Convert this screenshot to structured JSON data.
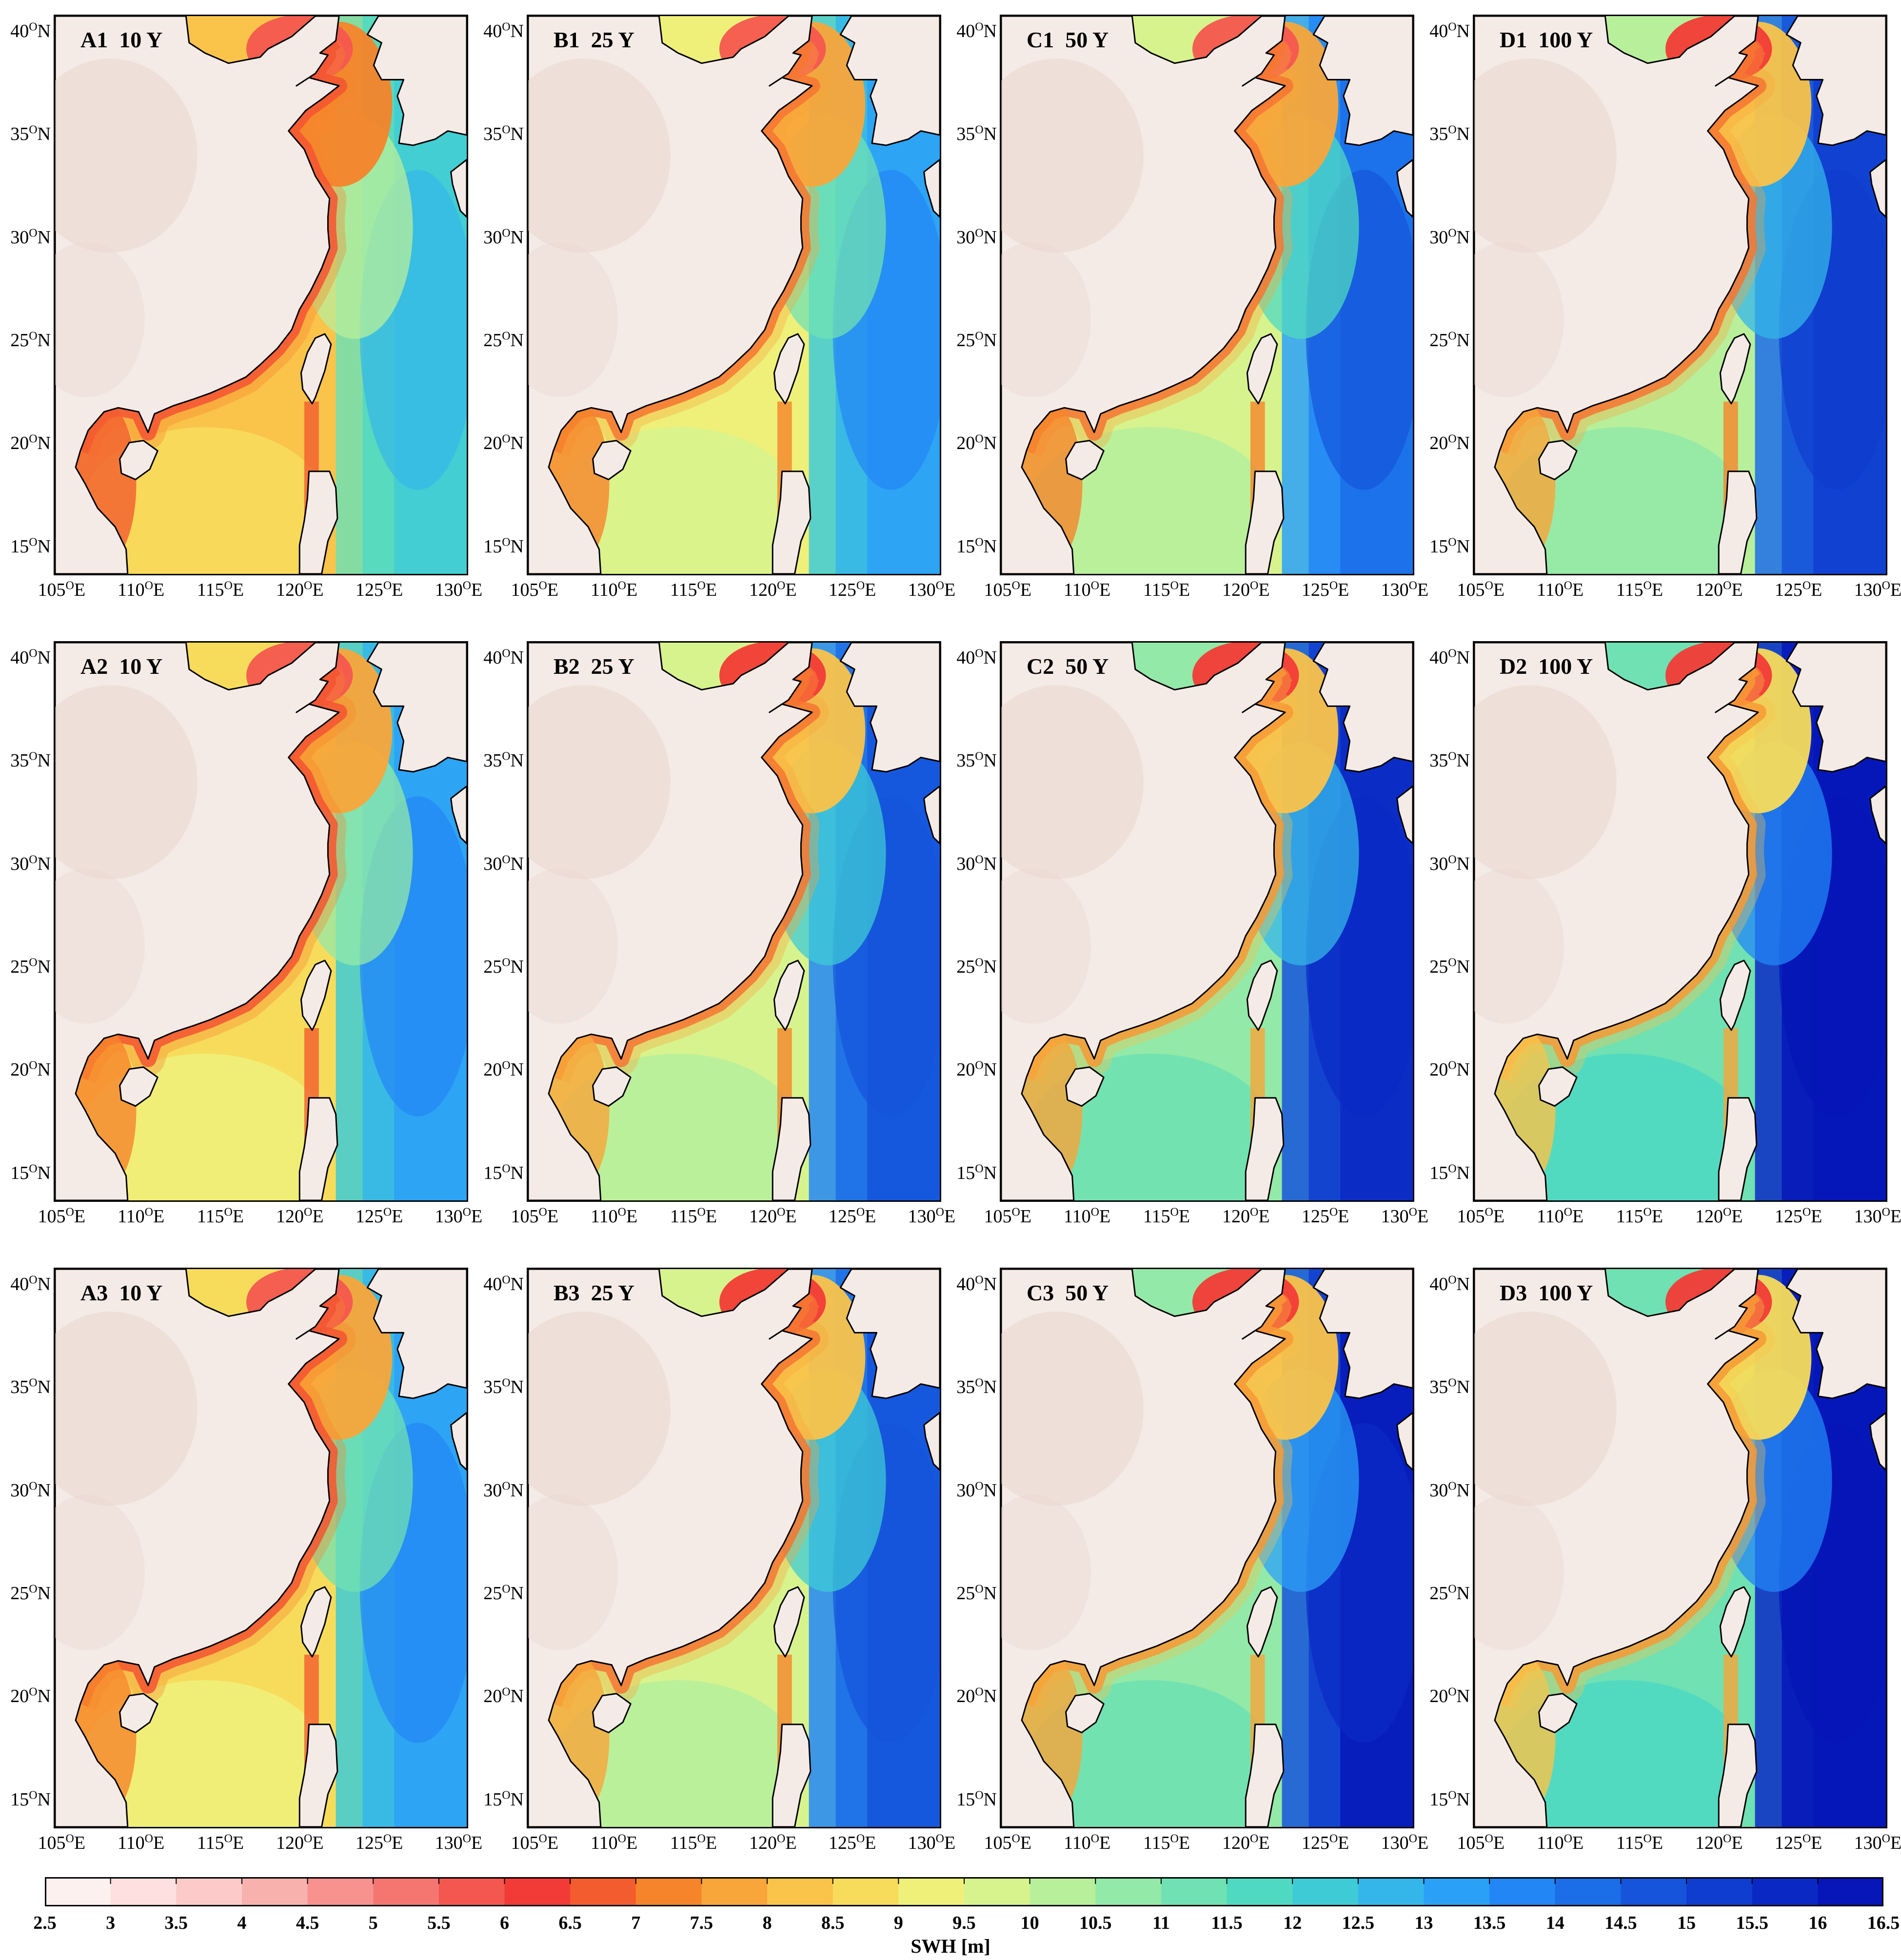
{
  "panels": [
    {
      "label": "A1  10 Y",
      "row": 0,
      "col": 0,
      "intensity": 0.0
    },
    {
      "label": "B1  25 Y",
      "row": 0,
      "col": 1,
      "intensity": 0.25
    },
    {
      "label": "C1  50 Y",
      "row": 0,
      "col": 2,
      "intensity": 0.45
    },
    {
      "label": "D1  100 Y",
      "row": 0,
      "col": 3,
      "intensity": 0.65
    },
    {
      "label": "A2  10 Y",
      "row": 1,
      "col": 0,
      "intensity": 0.2
    },
    {
      "label": "B2  25 Y",
      "row": 1,
      "col": 1,
      "intensity": 0.5
    },
    {
      "label": "C2  50 Y",
      "row": 1,
      "col": 2,
      "intensity": 0.75
    },
    {
      "label": "D2  100 Y",
      "row": 1,
      "col": 3,
      "intensity": 0.95
    },
    {
      "label": "A3  10 Y",
      "row": 2,
      "col": 0,
      "intensity": 0.22
    },
    {
      "label": "B3  25 Y",
      "row": 2,
      "col": 1,
      "intensity": 0.55
    },
    {
      "label": "C3  50 Y",
      "row": 2,
      "col": 2,
      "intensity": 0.8
    },
    {
      "label": "D3  100 Y",
      "row": 2,
      "col": 3,
      "intensity": 1.0
    }
  ],
  "lat_ticks": [
    {
      "text": "40",
      "unit": "N",
      "value": 40
    },
    {
      "text": "35",
      "unit": "N",
      "value": 35
    },
    {
      "text": "30",
      "unit": "N",
      "value": 30
    },
    {
      "text": "25",
      "unit": "N",
      "value": 25
    },
    {
      "text": "20",
      "unit": "N",
      "value": 20
    },
    {
      "text": "15",
      "unit": "N",
      "value": 15
    }
  ],
  "lon_ticks": [
    {
      "text": "105",
      "unit": "E",
      "value": 105
    },
    {
      "text": "110",
      "unit": "E",
      "value": 110
    },
    {
      "text": "115",
      "unit": "E",
      "value": 115
    },
    {
      "text": "120",
      "unit": "E",
      "value": 120
    },
    {
      "text": "125",
      "unit": "E",
      "value": 125
    },
    {
      "text": "130",
      "unit": "E",
      "value": 130
    }
  ],
  "degree_symbol": "O",
  "colorbar": {
    "label": "SWH [m]",
    "ticks": [
      "2.5",
      "3",
      "3.5",
      "4",
      "4.5",
      "5",
      "5.5",
      "6",
      "6.5",
      "7",
      "7.5",
      "8",
      "8.5",
      "9",
      "9.5",
      "10",
      "10.5",
      "11",
      "11.5",
      "12",
      "12.5",
      "13",
      "13.5",
      "14",
      "14.5",
      "15",
      "15.5",
      "16",
      "16.5"
    ],
    "colors": [
      "#fdf1f0",
      "#fde0df",
      "#fccbc9",
      "#f9b1ae",
      "#f7928e",
      "#f57671",
      "#f4574f",
      "#f23b36",
      "#f35c2e",
      "#f6842a",
      "#f8a53a",
      "#fac34a",
      "#f7dc5b",
      "#eef07a",
      "#d7f38d",
      "#b8ef9b",
      "#93e9a7",
      "#70e1b3",
      "#4fd9c2",
      "#3ecbd6",
      "#34b6ea",
      "#2ba0f7",
      "#2286f5",
      "#1b6de8",
      "#1554db",
      "#0f3dcf",
      "#0a29c4",
      "#0616b8"
    ]
  }
}
